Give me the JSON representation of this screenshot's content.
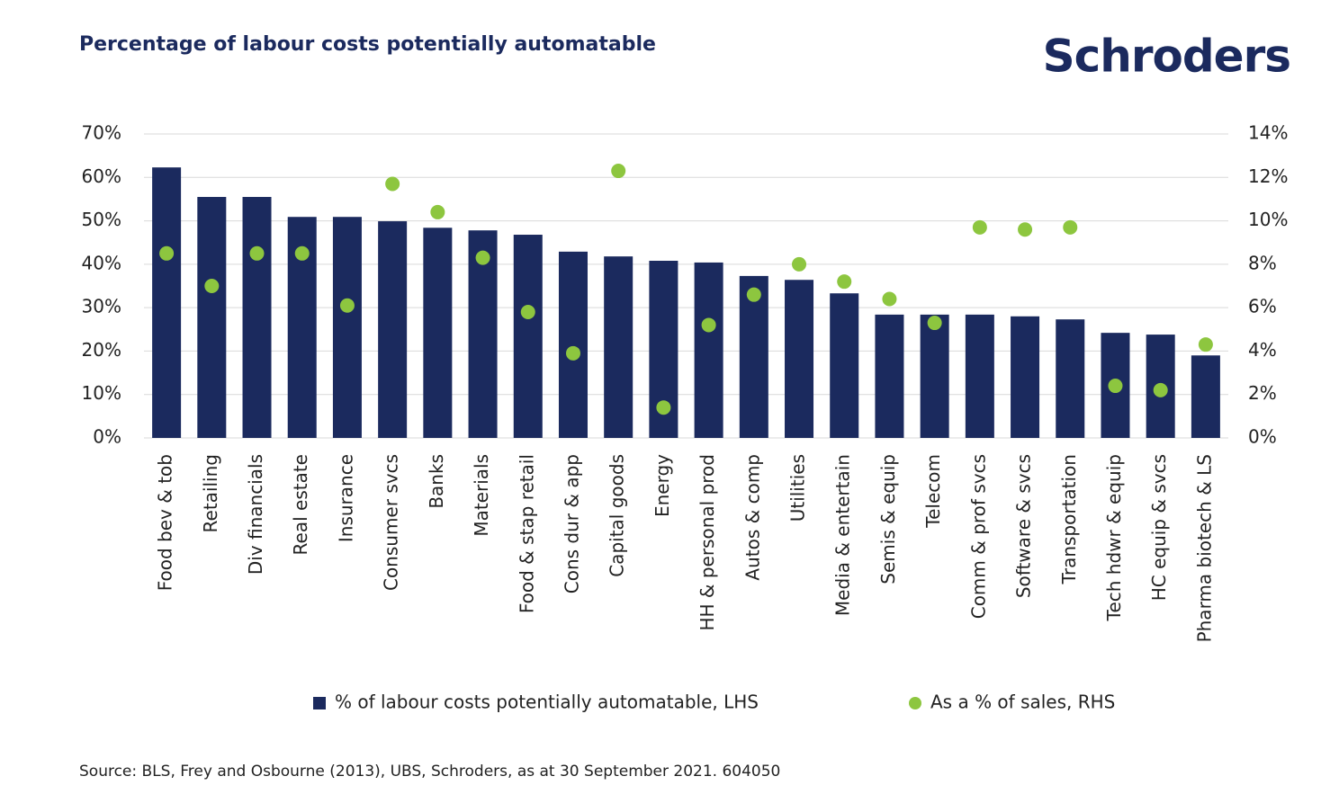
{
  "chart_data": {
    "type": "bar",
    "title": "Percentage of labour costs potentially automatable",
    "logo": "Schroders",
    "source": "Source: BLS, Frey and Osbourne (2013), UBS, Schroders, as at 30 September 2021. 604050",
    "categories": [
      "Food bev & tob",
      "Retailing",
      "Div financials",
      "Real estate",
      "Insurance",
      "Consumer svcs",
      "Banks",
      "Materials",
      "Food & stap retail",
      "Cons dur & app",
      "Capital goods",
      "Energy",
      "HH & personal prod",
      "Autos & comp",
      "Utilities",
      "Media & entertain",
      "Semis & equip",
      "Telecom",
      "Comm & prof svcs",
      "Software & svcs",
      "Transportation",
      "Tech hdwr & equip",
      "HC equip & svcs",
      "Pharma biotech & LS"
    ],
    "series": [
      {
        "name": "% of labour costs potentially automatable, LHS",
        "type": "bar",
        "color": "#1b2a5e",
        "values": [
          62.3,
          55.5,
          55.5,
          50.9,
          50.9,
          49.9,
          48.4,
          47.8,
          46.8,
          42.9,
          41.8,
          40.8,
          40.4,
          37.3,
          36.4,
          33.3,
          28.4,
          28.4,
          28.4,
          28.0,
          27.3,
          24.2,
          23.8,
          19.0
        ]
      },
      {
        "name": "As a % of sales, RHS",
        "type": "scatter",
        "axis": "y2",
        "color": "#8dc63f",
        "values": [
          8.5,
          7.0,
          8.5,
          8.5,
          6.1,
          11.7,
          10.4,
          8.3,
          5.8,
          3.9,
          12.3,
          1.4,
          5.2,
          6.6,
          8.0,
          7.2,
          6.4,
          5.3,
          9.7,
          9.6,
          9.7,
          2.4,
          2.2,
          4.3
        ]
      }
    ],
    "ylim": [
      0,
      70
    ],
    "yticks": [
      {
        "value": 0,
        "label": "0%"
      },
      {
        "value": 10,
        "label": "10%"
      },
      {
        "value": 20,
        "label": "20%"
      },
      {
        "value": 30,
        "label": "30%"
      },
      {
        "value": 40,
        "label": "40%"
      },
      {
        "value": 50,
        "label": "50%"
      },
      {
        "value": 60,
        "label": "60%"
      },
      {
        "value": 70,
        "label": "70%"
      }
    ],
    "y2lim": [
      0,
      14
    ],
    "y2ticks": [
      {
        "value": 0,
        "label": "0%"
      },
      {
        "value": 2,
        "label": "2%"
      },
      {
        "value": 4,
        "label": "4%"
      },
      {
        "value": 6,
        "label": "6%"
      },
      {
        "value": 8,
        "label": "8%"
      },
      {
        "value": 10,
        "label": "10%"
      },
      {
        "value": 12,
        "label": "12%"
      },
      {
        "value": 14,
        "label": "14%"
      }
    ],
    "grid": true,
    "legend": "bottom"
  }
}
